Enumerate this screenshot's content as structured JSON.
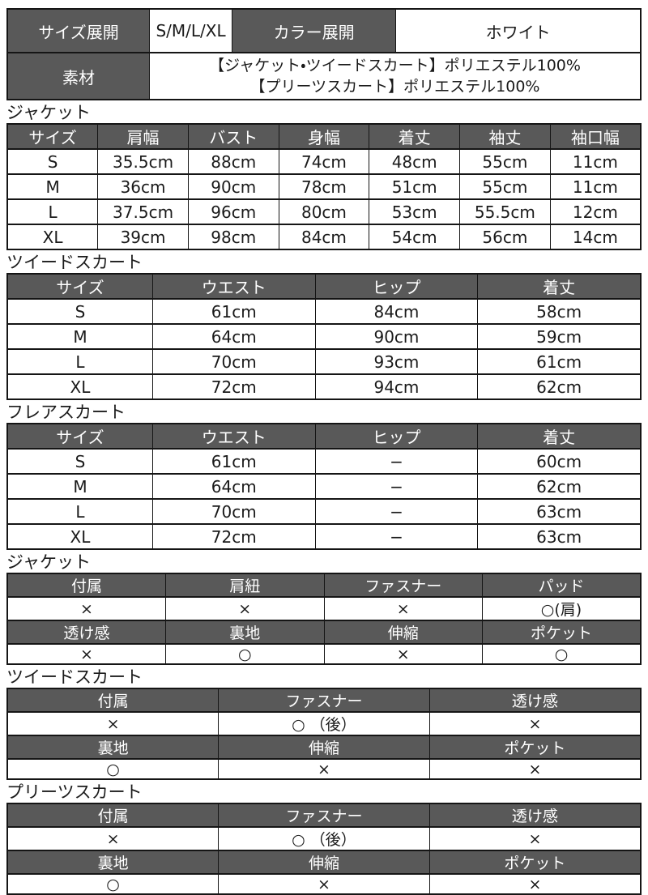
{
  "colors": {
    "header_bg": "#595959",
    "header_text": "#ffffff",
    "body_text": "#1a1a1a",
    "border": "#151515",
    "background": "#ffffff"
  },
  "info": {
    "size_label": "サイズ展開",
    "size_value": "S/M/L/XL",
    "color_label": "カラー展開",
    "color_value": "ホワイト",
    "material_label": "素材",
    "material_line1": "【ジャケット・ツイードスカート】ポリエステル100%",
    "material_line2": "【プリーツスカート】ポリエステル100%"
  },
  "size_tables": [
    {
      "title": "ジャケット",
      "headers": [
        "サイズ",
        "肩幅",
        "バスト",
        "身幅",
        "着丈",
        "袖丈",
        "袖口幅"
      ],
      "rows": [
        [
          "S",
          "35.5cm",
          "88cm",
          "74cm",
          "48cm",
          "55cm",
          "11cm"
        ],
        [
          "M",
          "36cm",
          "90cm",
          "78cm",
          "51cm",
          "55cm",
          "11cm"
        ],
        [
          "L",
          "37.5cm",
          "96cm",
          "80cm",
          "53cm",
          "55.5cm",
          "12cm"
        ],
        [
          "XL",
          "39cm",
          "98cm",
          "84cm",
          "54cm",
          "56cm",
          "14cm"
        ]
      ]
    },
    {
      "title": "ツイードスカート",
      "headers": [
        "サイズ",
        "ウエスト",
        "ヒップ",
        "着丈"
      ],
      "rows": [
        [
          "S",
          "61cm",
          "84cm",
          "58cm"
        ],
        [
          "M",
          "64cm",
          "90cm",
          "59cm"
        ],
        [
          "L",
          "70cm",
          "93cm",
          "61cm"
        ],
        [
          "XL",
          "72cm",
          "94cm",
          "62cm"
        ]
      ]
    },
    {
      "title": "フレアスカート",
      "headers": [
        "サイズ",
        "ウエスト",
        "ヒップ",
        "着丈"
      ],
      "rows": [
        [
          "S",
          "61cm",
          "−",
          "60cm"
        ],
        [
          "M",
          "64cm",
          "−",
          "62cm"
        ],
        [
          "L",
          "70cm",
          "−",
          "63cm"
        ],
        [
          "XL",
          "72cm",
          "−",
          "63cm"
        ]
      ]
    }
  ],
  "spec_tables": [
    {
      "title": "ジャケット",
      "rows": [
        {
          "headers": [
            "付属",
            "肩紐",
            "ファスナー",
            "パッド"
          ],
          "values": [
            "×",
            "×",
            "×",
            "○(肩)"
          ]
        },
        {
          "headers": [
            "透け感",
            "裏地",
            "伸縮",
            "ポケット"
          ],
          "values": [
            "×",
            "○",
            "×",
            "○"
          ]
        }
      ]
    },
    {
      "title": "ツイードスカート",
      "rows": [
        {
          "headers": [
            "付属",
            "ファスナー",
            "透け感"
          ],
          "values": [
            "×",
            "○ （後）",
            "×"
          ]
        },
        {
          "headers": [
            "裏地",
            "伸縮",
            "ポケット"
          ],
          "values": [
            "○",
            "×",
            "×"
          ]
        }
      ]
    },
    {
      "title": "プリーツスカート",
      "rows": [
        {
          "headers": [
            "付属",
            "ファスナー",
            "透け感"
          ],
          "values": [
            "×",
            "○ （後）",
            "×"
          ]
        },
        {
          "headers": [
            "裏地",
            "伸縮",
            "ポケット"
          ],
          "values": [
            "○",
            "×",
            "×"
          ]
        }
      ]
    }
  ]
}
